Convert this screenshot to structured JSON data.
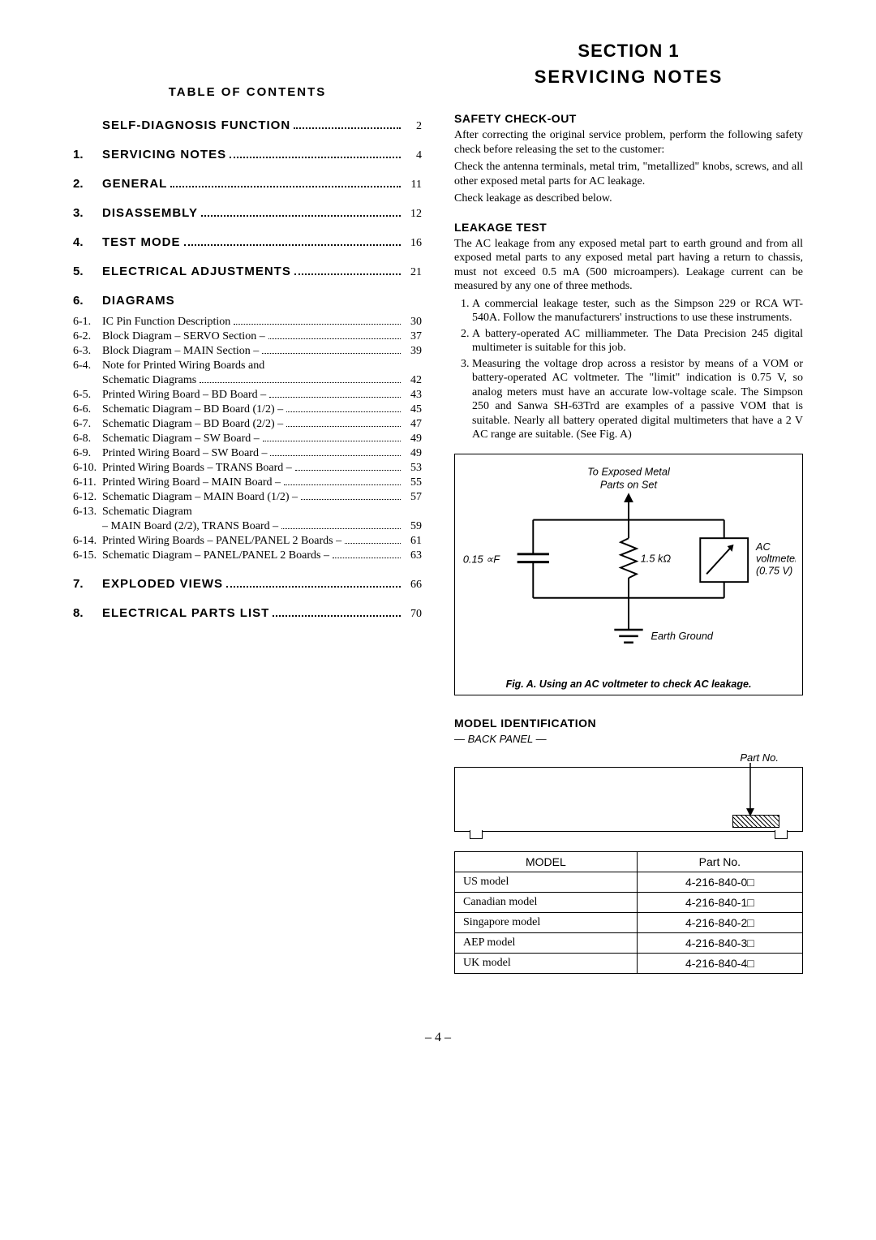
{
  "header": {
    "line1": "SECTION  1",
    "line2": "SERVICING  NOTES"
  },
  "toc": {
    "title": "TABLE  OF  CONTENTS",
    "first": {
      "label": "SELF-DIAGNOSIS  FUNCTION",
      "page": "2"
    },
    "main": [
      {
        "num": "1.",
        "label": "SERVICING  NOTES",
        "page": "4"
      },
      {
        "num": "2.",
        "label": "GENERAL",
        "page": "11"
      },
      {
        "num": "3.",
        "label": "DISASSEMBLY",
        "page": "12"
      },
      {
        "num": "4.",
        "label": "TEST  MODE",
        "page": "16"
      },
      {
        "num": "5.",
        "label": "ELECTRICAL  ADJUSTMENTS",
        "page": "21"
      }
    ],
    "section6": {
      "num": "6.",
      "label": "DIAGRAMS"
    },
    "sub6": [
      {
        "num": "6-1.",
        "label": "IC Pin Function Description",
        "page": "30"
      },
      {
        "num": "6-2.",
        "label": "Block Diagram – SERVO Section –",
        "page": "37"
      },
      {
        "num": "6-3.",
        "label": "Block Diagram – MAIN Section –",
        "page": "39"
      },
      {
        "num": "6-4.",
        "label": "Note for Printed Wiring Boards and",
        "label2": "Schematic Diagrams",
        "page": "42"
      },
      {
        "num": "6-5.",
        "label": "Printed Wiring Board  – BD Board –",
        "page": "43"
      },
      {
        "num": "6-6.",
        "label": "Schematic Diagram – BD Board (1/2) –",
        "page": "45"
      },
      {
        "num": "6-7.",
        "label": "Schematic Diagram – BD Board (2/2) –",
        "page": "47"
      },
      {
        "num": "6-8.",
        "label": "Schematic Diagram – SW Board –",
        "page": "49"
      },
      {
        "num": "6-9.",
        "label": "Printed Wiring Board – SW Board –",
        "page": "49"
      },
      {
        "num": "6-10.",
        "label": "Printed Wiring Boards – TRANS Board –",
        "page": "53"
      },
      {
        "num": "6-11.",
        "label": "Printed Wiring Board – MAIN Board –",
        "page": "55"
      },
      {
        "num": "6-12.",
        "label": "Schematic Diagram – MAIN Board (1/2) –",
        "page": "57"
      },
      {
        "num": "6-13.",
        "label": "Schematic Diagram",
        "label2": "– MAIN Board (2/2), TRANS Board –",
        "page": "59"
      },
      {
        "num": "6-14.",
        "label": "Printed Wiring Boards – PANEL/PANEL 2 Boards –",
        "page": "61"
      },
      {
        "num": "6-15.",
        "label": "Schematic Diagram – PANEL/PANEL 2 Boards –",
        "page": "63"
      }
    ],
    "tail": [
      {
        "num": "7.",
        "label": "EXPLODED  VIEWS",
        "page": "66"
      },
      {
        "num": "8.",
        "label": "ELECTRICAL  PARTS  LIST",
        "page": "70"
      }
    ]
  },
  "safety": {
    "heading": "SAFETY  CHECK-OUT",
    "p1": "After correcting the original service problem, perform the following safety check before releasing the set to the customer:",
    "p2": "Check the antenna terminals, metal trim, \"metallized\" knobs, screws, and all other exposed metal parts for AC leakage.",
    "p3": "Check leakage as described below."
  },
  "leakage": {
    "heading": "LEAKAGE  TEST",
    "intro": "The AC leakage from any exposed metal part to earth ground and from all exposed metal parts to any exposed metal part having a return to chassis, must not exceed 0.5 mA (500 microampers). Leakage current can be measured by any one of three methods.",
    "items": [
      "A commercial leakage tester, such as the Simpson 229 or RCA WT-540A. Follow the manufacturers' instructions to use these instruments.",
      "A battery-operated AC milliammeter. The Data Precision 245 digital multimeter is suitable for this job.",
      "Measuring the voltage drop across a resistor by means of a VOM or battery-operated AC voltmeter. The \"limit\" indication is 0.75 V, so analog meters must have an accurate low-voltage scale. The Simpson 250 and Sanwa SH-63Trd are examples of a passive VOM that is suitable. Nearly all battery operated digital multimeters that have a 2 V AC range are suitable.  (See Fig. A)"
    ]
  },
  "figA": {
    "top_label": "To Exposed Metal\nParts on Set",
    "cap_label": "0.15 ∝F",
    "res_label": "1.5 kΩ",
    "volt_l1": "AC",
    "volt_l2": "voltmeter",
    "volt_l3": "(0.75 V)",
    "ground": "Earth Ground",
    "caption": "Fig. A.    Using an AC voltmeter to check AC leakage."
  },
  "modelId": {
    "heading": "MODEL IDENTIFICATION",
    "sub": "— BACK PANEL —",
    "partno_label": "Part No.",
    "table": {
      "headers": [
        "MODEL",
        "Part No."
      ],
      "rows": [
        [
          "US model",
          "4-216-840-0□"
        ],
        [
          "Canadian model",
          "4-216-840-1□"
        ],
        [
          "Singapore model",
          "4-216-840-2□"
        ],
        [
          "AEP model",
          "4-216-840-3□"
        ],
        [
          "UK model",
          "4-216-840-4□"
        ]
      ]
    }
  },
  "page_number": "– 4 –"
}
